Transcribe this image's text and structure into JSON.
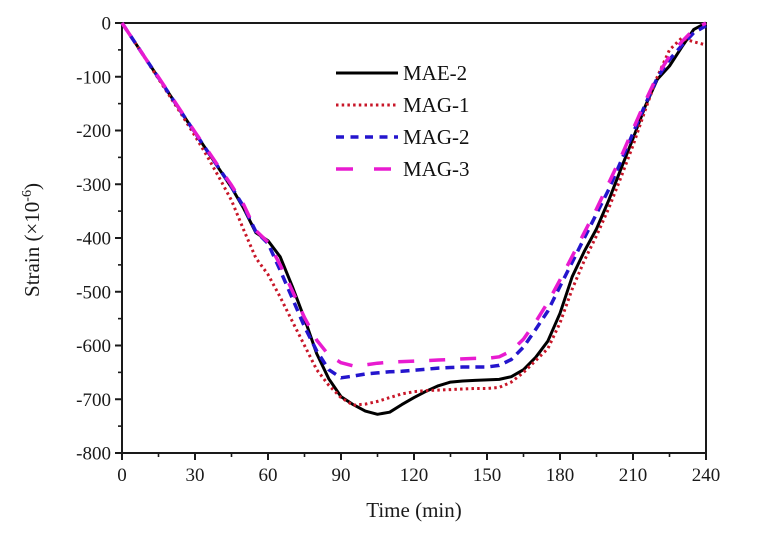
{
  "axes": {
    "xlabel": "Time (min)",
    "ylabel_pre": "Strain (×10",
    "ylabel_sup": "-6",
    "ylabel_post": ")"
  },
  "chart_data": {
    "type": "line",
    "title": "",
    "xlabel": "Time (min)",
    "ylabel": "Strain (×10⁻⁶)",
    "xlim": [
      0,
      240
    ],
    "ylim": [
      -800,
      0
    ],
    "x_ticks_major": [
      0,
      30,
      60,
      90,
      120,
      150,
      180,
      210,
      240
    ],
    "x_ticks_minor": [
      15,
      45,
      75,
      105,
      135,
      165,
      195,
      225
    ],
    "y_ticks_major": [
      0,
      -100,
      -200,
      -300,
      -400,
      -500,
      -600,
      -700,
      -800
    ],
    "y_ticks_minor": [
      -50,
      -150,
      -250,
      -350,
      -450,
      -550,
      -650,
      -750
    ],
    "grid": false,
    "legend_position": "inside upper center-left",
    "x": [
      0,
      5,
      10,
      15,
      20,
      25,
      30,
      35,
      40,
      45,
      50,
      55,
      60,
      65,
      70,
      75,
      80,
      85,
      90,
      95,
      100,
      105,
      110,
      115,
      120,
      125,
      130,
      135,
      140,
      145,
      150,
      155,
      160,
      165,
      170,
      175,
      180,
      185,
      190,
      195,
      200,
      205,
      210,
      215,
      220,
      225,
      230,
      235,
      240
    ],
    "series": [
      {
        "name": "MAE-2",
        "color": "#000000",
        "style": "solid",
        "width": 3,
        "values": [
          0,
          -34,
          -68,
          -102,
          -136,
          -170,
          -204,
          -238,
          -272,
          -306,
          -345,
          -390,
          -405,
          -435,
          -490,
          -550,
          -615,
          -662,
          -695,
          -710,
          -722,
          -728,
          -724,
          -710,
          -697,
          -685,
          -675,
          -668,
          -666,
          -665,
          -664,
          -663,
          -658,
          -645,
          -622,
          -592,
          -540,
          -472,
          -425,
          -383,
          -330,
          -272,
          -215,
          -155,
          -105,
          -80,
          -45,
          -12,
          0
        ]
      },
      {
        "name": "MAG-1",
        "color": "#c81628",
        "style": "dotted",
        "width": 3,
        "values": [
          0,
          -34,
          -69,
          -104,
          -139,
          -174,
          -210,
          -248,
          -288,
          -330,
          -385,
          -437,
          -468,
          -510,
          -555,
          -600,
          -645,
          -674,
          -697,
          -711,
          -709,
          -704,
          -697,
          -690,
          -686,
          -684,
          -683,
          -682,
          -681,
          -680,
          -680,
          -678,
          -668,
          -650,
          -628,
          -606,
          -558,
          -495,
          -442,
          -396,
          -345,
          -288,
          -228,
          -162,
          -100,
          -50,
          -28,
          -35,
          -41
        ]
      },
      {
        "name": "MAG-2",
        "color": "#2415cd",
        "style": "dashed",
        "width": 3.5,
        "values": [
          0,
          -34,
          -68,
          -102,
          -136,
          -170,
          -204,
          -238,
          -271,
          -305,
          -342,
          -388,
          -410,
          -460,
          -512,
          -565,
          -610,
          -645,
          -660,
          -657,
          -653,
          -651,
          -649,
          -648,
          -646,
          -644,
          -642,
          -641,
          -640,
          -640,
          -640,
          -637,
          -626,
          -603,
          -570,
          -536,
          -490,
          -445,
          -400,
          -355,
          -310,
          -258,
          -205,
          -152,
          -102,
          -68,
          -42,
          -18,
          -5
        ]
      },
      {
        "name": "MAG-3",
        "color": "#e81bd0",
        "style": "longdash",
        "width": 3.5,
        "values": [
          0,
          -34,
          -68,
          -101,
          -135,
          -169,
          -203,
          -236,
          -269,
          -302,
          -338,
          -386,
          -408,
          -450,
          -498,
          -548,
          -590,
          -618,
          -632,
          -638,
          -636,
          -633,
          -631,
          -630,
          -629,
          -628,
          -627,
          -626,
          -625,
          -624,
          -624,
          -621,
          -610,
          -588,
          -556,
          -520,
          -478,
          -434,
          -390,
          -346,
          -298,
          -250,
          -198,
          -146,
          -98,
          -62,
          -35,
          -12,
          0
        ]
      }
    ]
  }
}
